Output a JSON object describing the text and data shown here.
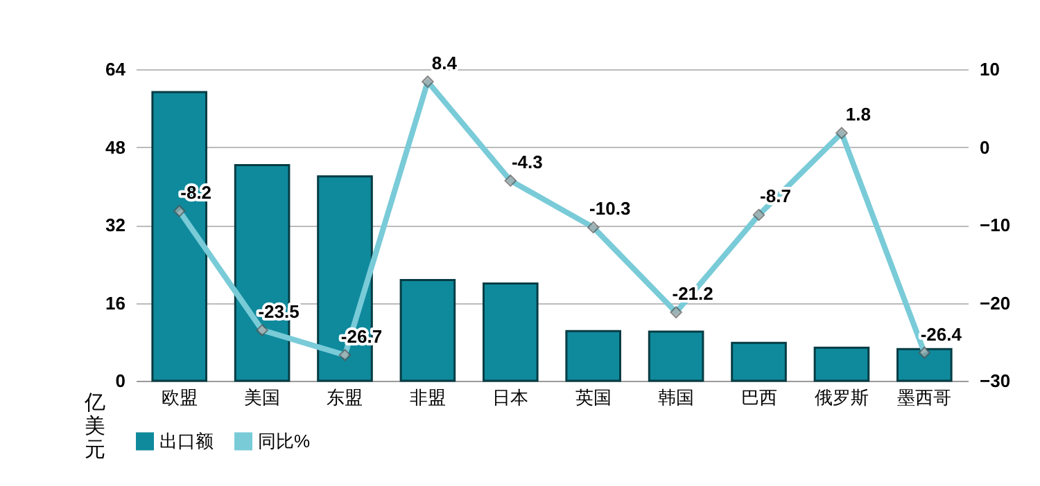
{
  "chart_data": {
    "type": "bar",
    "ylabel": "亿美元",
    "categories": [
      "欧盟",
      "美国",
      "东盟",
      "非盟",
      "日本",
      "英国",
      "韩国",
      "巴西",
      "俄罗斯",
      "墨西哥"
    ],
    "series": [
      {
        "name": "出口额",
        "color": "#0f8a9c",
        "values": [
          59.3,
          44.3,
          42.0,
          20.7,
          20.0,
          10.2,
          10.1,
          7.8,
          6.8,
          6.5
        ]
      },
      {
        "name": "同比%",
        "type": "line",
        "axis": "y2",
        "color": "#79cbd8",
        "values": [
          -8.2,
          -23.5,
          -26.7,
          8.4,
          -4.3,
          -10.3,
          -21.2,
          -8.7,
          1.8,
          -26.4
        ],
        "value_labels": [
          "-8.2",
          "-23.5",
          "-26.7",
          "8.4",
          "-4.3",
          "-10.3",
          "-21.2",
          "-8.7",
          "1.8",
          "-26.4"
        ]
      }
    ],
    "ylim": [
      0,
      64
    ],
    "yticks": [
      0,
      16,
      32,
      48,
      64
    ],
    "y2lim": [
      -30,
      10
    ],
    "y2ticks": [
      -30,
      -20,
      -10,
      0,
      10
    ],
    "grid": "y",
    "legend": "bottom",
    "marker": "diamond",
    "line_style": "solid"
  }
}
